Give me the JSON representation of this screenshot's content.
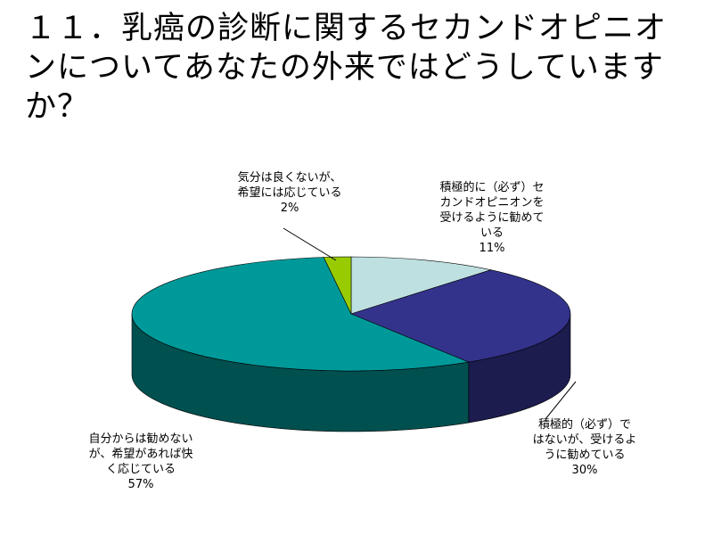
{
  "title": "１１．乳癌の診断に関するセカンドオピニオンについてあなたの外来ではどうしていますか？",
  "chart_data": {
    "type": "pie",
    "style": "3d",
    "slices": [
      {
        "label_lines": [
          "積極的に（必ず）セ",
          "カンドオピニオンを",
          "受けるように勧めて",
          "いる"
        ],
        "value": 11,
        "pct": "11%",
        "color": "#bfe0e0",
        "side": "#7fa8a8"
      },
      {
        "label_lines": [
          "積極的（必ず）で",
          "はないが、受けるよ",
          "うに勧めている"
        ],
        "value": 30,
        "pct": "30%",
        "color": "#33338c",
        "side": "#1c1c4e"
      },
      {
        "label_lines": [
          "自分からは勧めない",
          "が、希望があれば快",
          "く応じている"
        ],
        "value": 57,
        "pct": "57%",
        "color": "#009999",
        "side": "#005050"
      },
      {
        "label_lines": [
          "気分は良くないが、",
          "希望には応じている"
        ],
        "value": 2,
        "pct": "2%",
        "color": "#99cc00",
        "side": "#5c7a00"
      }
    ]
  }
}
